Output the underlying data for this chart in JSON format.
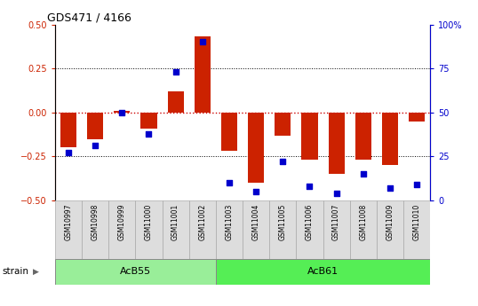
{
  "title": "GDS471 / 4166",
  "samples": [
    "GSM10997",
    "GSM10998",
    "GSM10999",
    "GSM11000",
    "GSM11001",
    "GSM11002",
    "GSM11003",
    "GSM11004",
    "GSM11005",
    "GSM11006",
    "GSM11007",
    "GSM11008",
    "GSM11009",
    "GSM11010"
  ],
  "log_ratio": [
    -0.2,
    -0.15,
    0.01,
    -0.09,
    0.12,
    0.43,
    -0.22,
    -0.4,
    -0.13,
    -0.27,
    -0.35,
    -0.27,
    -0.3,
    -0.05
  ],
  "percentile_rank": [
    27,
    31,
    50,
    38,
    73,
    90,
    10,
    5,
    22,
    8,
    4,
    15,
    7,
    9
  ],
  "groups": [
    {
      "label": "AcB55",
      "start": 0,
      "end": 6,
      "color": "#99ee99"
    },
    {
      "label": "AcB61",
      "start": 6,
      "end": 14,
      "color": "#55ee55"
    }
  ],
  "ylim_left": [
    -0.5,
    0.5
  ],
  "ylim_right": [
    0,
    100
  ],
  "yticks_left": [
    -0.5,
    -0.25,
    0.0,
    0.25,
    0.5
  ],
  "yticks_right": [
    0,
    25,
    50,
    75,
    100
  ],
  "bar_color": "#cc2200",
  "dot_color": "#0000cc",
  "hline_color": "#cc0000",
  "grid_color": "black",
  "left_axis_color": "#cc2200",
  "right_axis_color": "#0000cc",
  "n_samples": 14
}
